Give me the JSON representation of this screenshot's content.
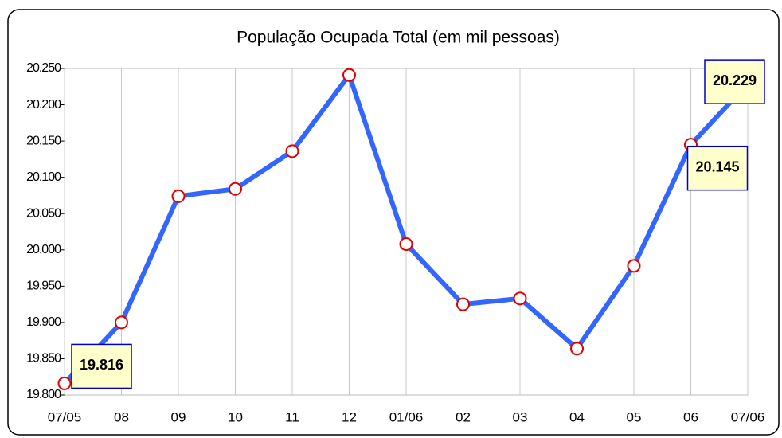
{
  "chart_data": {
    "type": "line",
    "title": "População Ocupada Total (em mil pessoas)",
    "categories": [
      "07/05",
      "08",
      "09",
      "10",
      "11",
      "12",
      "01/06",
      "02",
      "03",
      "04",
      "05",
      "06",
      "07/06"
    ],
    "series": [
      {
        "color": "#3366ff",
        "values": [
          19816,
          19900,
          20074,
          20084,
          20136,
          20241,
          20008,
          19925,
          19933,
          19864,
          19978,
          20145,
          20229
        ],
        "value_labels": [
          "19.816",
          null,
          null,
          null,
          null,
          null,
          null,
          null,
          null,
          null,
          null,
          "20.145",
          "20.229"
        ]
      }
    ],
    "ylim": [
      19800,
      20250
    ],
    "yticks": [
      {
        "value": 19800,
        "label": "19.800"
      },
      {
        "value": 19850,
        "label": "19.850"
      },
      {
        "value": 19900,
        "label": "19.900"
      },
      {
        "value": 19950,
        "label": "19.950"
      },
      {
        "value": 20000,
        "label": "20.000"
      },
      {
        "value": 20050,
        "label": "20.050"
      },
      {
        "value": 20100,
        "label": "20.100"
      },
      {
        "value": 20150,
        "label": "20.150"
      },
      {
        "value": 20200,
        "label": "20.200"
      },
      {
        "value": 20250,
        "label": "20.250"
      }
    ],
    "grid": true
  }
}
